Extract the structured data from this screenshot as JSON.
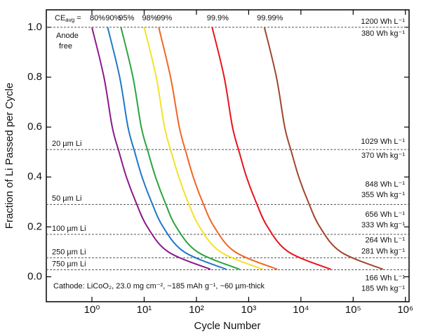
{
  "chart_data": {
    "type": "line",
    "x_label": "Cycle Number",
    "y_label": "Fraction of Li Passed per Cycle",
    "log_x": true,
    "xlim": [
      0.134,
      1175000
    ],
    "ylim": [
      -0.1,
      1.07
    ],
    "xticks": [
      {
        "value": 1,
        "label": "10⁰"
      },
      {
        "value": 10,
        "label": "10¹"
      },
      {
        "value": 100,
        "label": "10²"
      },
      {
        "value": 1000,
        "label": "10³"
      },
      {
        "value": 10000,
        "label": "10⁴"
      },
      {
        "value": 100000,
        "label": "10⁵"
      },
      {
        "value": 1000000,
        "label": "10⁶"
      }
    ],
    "yticks": [
      {
        "value": 0,
        "label": "0.0"
      },
      0.2,
      0.4,
      0.6,
      0.8,
      {
        "value": 1,
        "label": "1.0"
      }
    ],
    "series_label_prefix": {
      "text": "CE",
      "sub": "avg",
      "suffix": "="
    },
    "series": [
      {
        "name": "80%",
        "color": "#8b1a89",
        "x": [
          1,
          1.7,
          2.45,
          3.31,
          4.57,
          6.92,
          11.5,
          28.8,
          186
        ],
        "values": [
          1,
          0.8,
          0.6,
          0.5,
          0.4,
          0.3,
          0.2,
          0.1,
          0.03
        ]
      },
      {
        "name": "90%",
        "color": "#1f78c8",
        "x": [
          2,
          3.4,
          4.9,
          6.6,
          9.1,
          13.8,
          23,
          58,
          372
        ],
        "values": [
          1,
          0.8,
          0.6,
          0.5,
          0.4,
          0.3,
          0.2,
          0.1,
          0.03
        ]
      },
      {
        "name": "95%",
        "color": "#2ca33e",
        "x": [
          3.6,
          6.1,
          8.8,
          11.9,
          16.5,
          24.9,
          41,
          104,
          670
        ],
        "values": [
          1,
          0.8,
          0.6,
          0.5,
          0.4,
          0.3,
          0.2,
          0.1,
          0.03
        ]
      },
      {
        "name": "98%",
        "color": "#f2e22a",
        "x": [
          10,
          17,
          24.5,
          33,
          46,
          69,
          115,
          288,
          1860
        ],
        "values": [
          1,
          0.8,
          0.6,
          0.5,
          0.4,
          0.3,
          0.2,
          0.1,
          0.03
        ]
      },
      {
        "name": "99%",
        "color": "#f26522",
        "x": [
          19,
          32,
          47,
          63,
          87,
          131,
          219,
          547,
          3530
        ],
        "values": [
          1,
          0.8,
          0.6,
          0.5,
          0.4,
          0.3,
          0.2,
          0.1,
          0.03
        ]
      },
      {
        "name": "99.9%",
        "color": "#e8141c",
        "x": [
          200,
          340,
          490,
          660,
          910,
          1380,
          2300,
          5760,
          37200
        ],
        "values": [
          1,
          0.8,
          0.6,
          0.5,
          0.4,
          0.3,
          0.2,
          0.1,
          0.03
        ]
      },
      {
        "name": "99.99%",
        "color": "#a0462e",
        "x": [
          2000,
          3400,
          4900,
          6600,
          9100,
          13800,
          23000,
          57600,
          372000
        ],
        "values": [
          1,
          0.8,
          0.6,
          0.5,
          0.4,
          0.3,
          0.2,
          0.1,
          0.03
        ]
      }
    ],
    "reference_lines": [
      {
        "value": 1,
        "right_labels": [
          "1200 Wh L⁻¹",
          "380 Wh kg⁻¹"
        ]
      },
      {
        "value": 0.51,
        "label": "20 µm Li",
        "right_labels": [
          "1029 Wh L⁻¹",
          "370 Wh kg⁻¹"
        ]
      },
      {
        "value": 0.29,
        "label": "50 µm Li",
        "right_labels": [
          "848 Wh L⁻¹",
          "355 Wh kg⁻¹"
        ]
      },
      {
        "value": 0.17,
        "label": "100 µm Li",
        "right_labels": [
          "656 Wh L⁻¹",
          "333 Wh kg⁻¹"
        ]
      },
      {
        "value": 0.076,
        "label": "250 µm Li",
        "right_labels": [
          "264 Wh L⁻¹",
          "281 Wh kg⁻¹"
        ]
      },
      {
        "value": 0.028,
        "label": "750 µm Li",
        "right_labels": [
          "166 Wh L⁻¹",
          "185 Wh kg⁻¹"
        ]
      }
    ],
    "anode_free_label": [
      "Anode",
      "free"
    ],
    "note": "Cathode: LiCoO₂, 23.0 mg cm⁻², ~185 mAh g⁻¹, ~60 µm-thick"
  }
}
